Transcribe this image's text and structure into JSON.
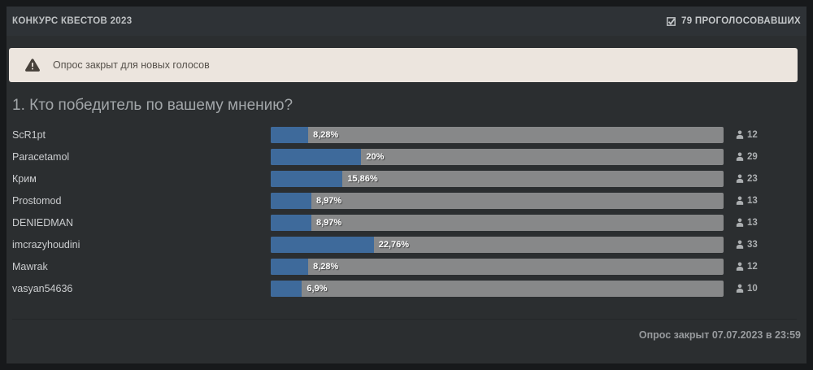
{
  "header": {
    "title": "КОНКУРС КВЕСТОВ 2023",
    "voters_label": "79 ПРОГОЛОСОВАВШИХ",
    "voters_count": 79
  },
  "banner": {
    "message": "Опрос закрыт для новых голосов"
  },
  "poll": {
    "question": "1. Кто победитель по вашему мнению?",
    "options": [
      {
        "label": "ScR1pt",
        "percent": 8.28,
        "percent_label": "8,28%",
        "votes": 12
      },
      {
        "label": "Paracetamol",
        "percent": 20,
        "percent_label": "20%",
        "votes": 29
      },
      {
        "label": "Крим",
        "percent": 15.86,
        "percent_label": "15,86%",
        "votes": 23
      },
      {
        "label": "Prostomod",
        "percent": 8.97,
        "percent_label": "8,97%",
        "votes": 13
      },
      {
        "label": "DENIEDMAN",
        "percent": 8.97,
        "percent_label": "8,97%",
        "votes": 13
      },
      {
        "label": "imcrazyhoudini",
        "percent": 22.76,
        "percent_label": "22,76%",
        "votes": 33
      },
      {
        "label": "Mawrak",
        "percent": 8.28,
        "percent_label": "8,28%",
        "votes": 12
      },
      {
        "label": "vasyan54636",
        "percent": 6.9,
        "percent_label": "6,9%",
        "votes": 10
      }
    ]
  },
  "footer": {
    "closed_text": "Опрос закрыт 07.07.2023 в 23:59"
  },
  "icons": {
    "voters": "ballot-check-icon",
    "banner": "warning-triangle-icon",
    "votes": "person-icon"
  },
  "colors": {
    "accent_blue": "#3e6a9b",
    "bar_gray": "#878889",
    "panel_bg": "#2b2e30",
    "header_bg": "#2e3236",
    "banner_bg": "#ece5de",
    "banner_text": "#55504a",
    "outer_bg": "#17191b"
  }
}
